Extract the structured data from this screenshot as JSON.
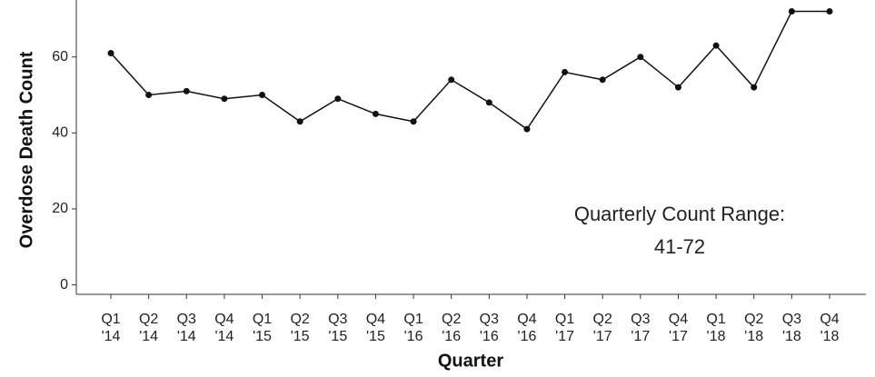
{
  "chart_data": {
    "type": "line",
    "categories": [
      [
        "Q1",
        "'14"
      ],
      [
        "Q2",
        "'14"
      ],
      [
        "Q3",
        "'14"
      ],
      [
        "Q4",
        "'14"
      ],
      [
        "Q1",
        "'15"
      ],
      [
        "Q2",
        "'15"
      ],
      [
        "Q3",
        "'15"
      ],
      [
        "Q4",
        "'15"
      ],
      [
        "Q1",
        "'16"
      ],
      [
        "Q2",
        "'16"
      ],
      [
        "Q3",
        "'16"
      ],
      [
        "Q4",
        "'16"
      ],
      [
        "Q1",
        "'17"
      ],
      [
        "Q2",
        "'17"
      ],
      [
        "Q3",
        "'17"
      ],
      [
        "Q4",
        "'17"
      ],
      [
        "Q1",
        "'18"
      ],
      [
        "Q2",
        "'18"
      ],
      [
        "Q3",
        "'18"
      ],
      [
        "Q4",
        "'18"
      ]
    ],
    "values": [
      61,
      50,
      51,
      49,
      50,
      43,
      49,
      45,
      43,
      54,
      48,
      41,
      56,
      54,
      60,
      52,
      63,
      52,
      72,
      72
    ],
    "color": "#111111",
    "x_label": "Quarter",
    "y_label": "Overdose Death Count",
    "annotations": [
      "Quarterly Count Range:",
      "41-72"
    ],
    "ylim": [
      -2.5,
      75
    ],
    "yticks": [
      0,
      20,
      40,
      60
    ]
  }
}
